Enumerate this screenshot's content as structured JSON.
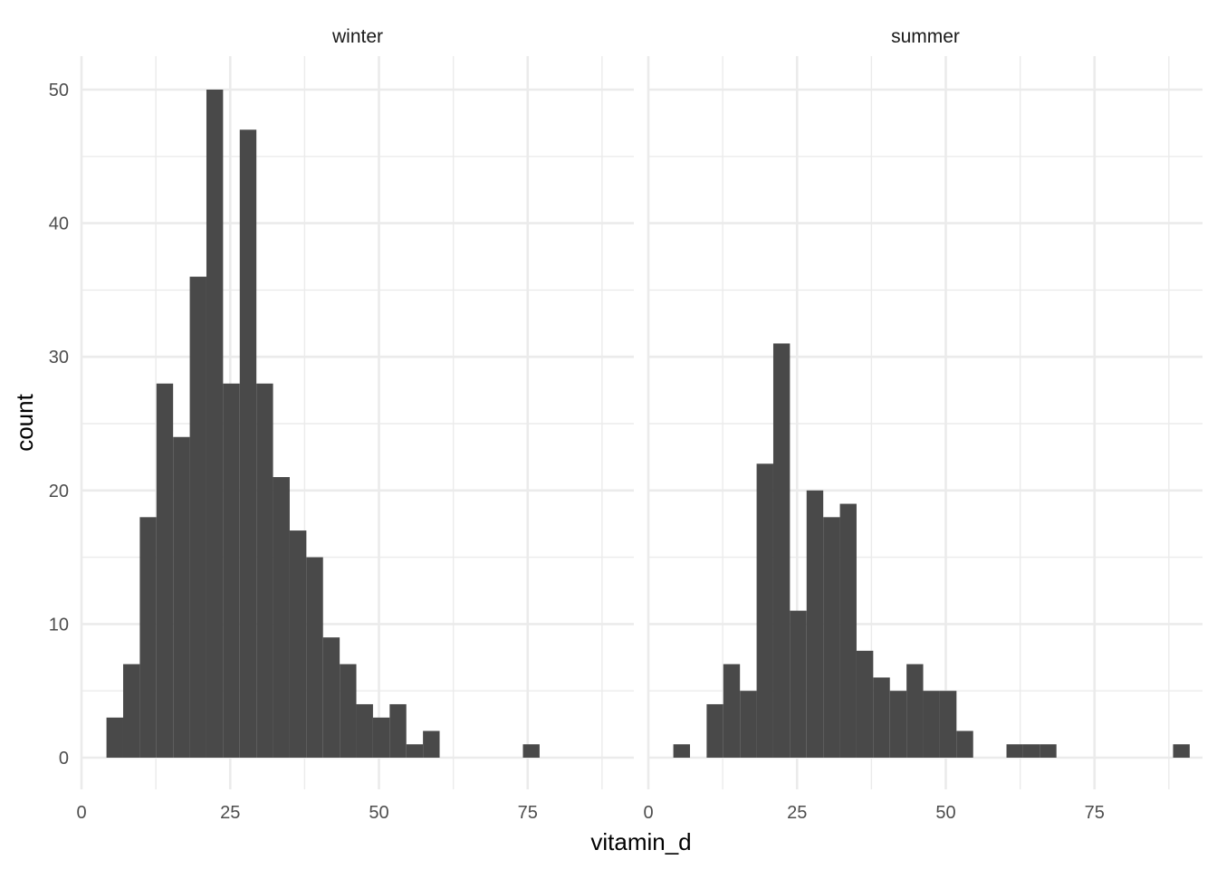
{
  "chart_data": {
    "type": "bar",
    "subtype": "histogram",
    "facet_by": "season",
    "xlabel": "vitamin_d",
    "ylabel": "count",
    "xlim": [
      0,
      90
    ],
    "ylim": [
      0,
      52
    ],
    "x_ticks": [
      0,
      25,
      50,
      75
    ],
    "y_ticks": [
      0,
      10,
      20,
      30,
      40,
      50
    ],
    "grid": true,
    "bar_color": "#494949",
    "panels": [
      {
        "label": "winter",
        "bin_width": 2.8,
        "bins": [
          {
            "x": 5.6,
            "count": 3
          },
          {
            "x": 8.4,
            "count": 7
          },
          {
            "x": 11.2,
            "count": 18
          },
          {
            "x": 14.0,
            "count": 28
          },
          {
            "x": 16.8,
            "count": 24
          },
          {
            "x": 19.6,
            "count": 36
          },
          {
            "x": 22.4,
            "count": 50
          },
          {
            "x": 25.2,
            "count": 28
          },
          {
            "x": 28.0,
            "count": 47
          },
          {
            "x": 30.8,
            "count": 28
          },
          {
            "x": 33.6,
            "count": 21
          },
          {
            "x": 36.4,
            "count": 17
          },
          {
            "x": 39.2,
            "count": 15
          },
          {
            "x": 42.0,
            "count": 9
          },
          {
            "x": 44.8,
            "count": 7
          },
          {
            "x": 47.6,
            "count": 4
          },
          {
            "x": 50.4,
            "count": 3
          },
          {
            "x": 53.2,
            "count": 4
          },
          {
            "x": 56.0,
            "count": 1
          },
          {
            "x": 58.8,
            "count": 2
          },
          {
            "x": 61.6,
            "count": 0
          },
          {
            "x": 64.4,
            "count": 0
          },
          {
            "x": 67.2,
            "count": 0
          },
          {
            "x": 70.0,
            "count": 0
          },
          {
            "x": 72.8,
            "count": 0
          },
          {
            "x": 75.6,
            "count": 1
          }
        ]
      },
      {
        "label": "summer",
        "bin_width": 2.8,
        "bins": [
          {
            "x": 5.6,
            "count": 1
          },
          {
            "x": 8.4,
            "count": 0
          },
          {
            "x": 11.2,
            "count": 4
          },
          {
            "x": 14.0,
            "count": 7
          },
          {
            "x": 16.8,
            "count": 5
          },
          {
            "x": 19.6,
            "count": 22
          },
          {
            "x": 22.4,
            "count": 31
          },
          {
            "x": 25.2,
            "count": 11
          },
          {
            "x": 28.0,
            "count": 20
          },
          {
            "x": 30.8,
            "count": 18
          },
          {
            "x": 33.6,
            "count": 19
          },
          {
            "x": 36.4,
            "count": 8
          },
          {
            "x": 39.2,
            "count": 6
          },
          {
            "x": 42.0,
            "count": 5
          },
          {
            "x": 44.8,
            "count": 7
          },
          {
            "x": 47.6,
            "count": 5
          },
          {
            "x": 50.4,
            "count": 5
          },
          {
            "x": 53.2,
            "count": 2
          },
          {
            "x": 56.0,
            "count": 0
          },
          {
            "x": 58.8,
            "count": 0
          },
          {
            "x": 61.6,
            "count": 1
          },
          {
            "x": 64.4,
            "count": 1
          },
          {
            "x": 67.2,
            "count": 1
          },
          {
            "x": 70.0,
            "count": 0
          },
          {
            "x": 72.8,
            "count": 0
          },
          {
            "x": 75.6,
            "count": 0
          },
          {
            "x": 78.4,
            "count": 0
          },
          {
            "x": 81.2,
            "count": 0
          },
          {
            "x": 84.0,
            "count": 0
          },
          {
            "x": 86.8,
            "count": 0
          },
          {
            "x": 89.6,
            "count": 1
          }
        ]
      }
    ]
  }
}
